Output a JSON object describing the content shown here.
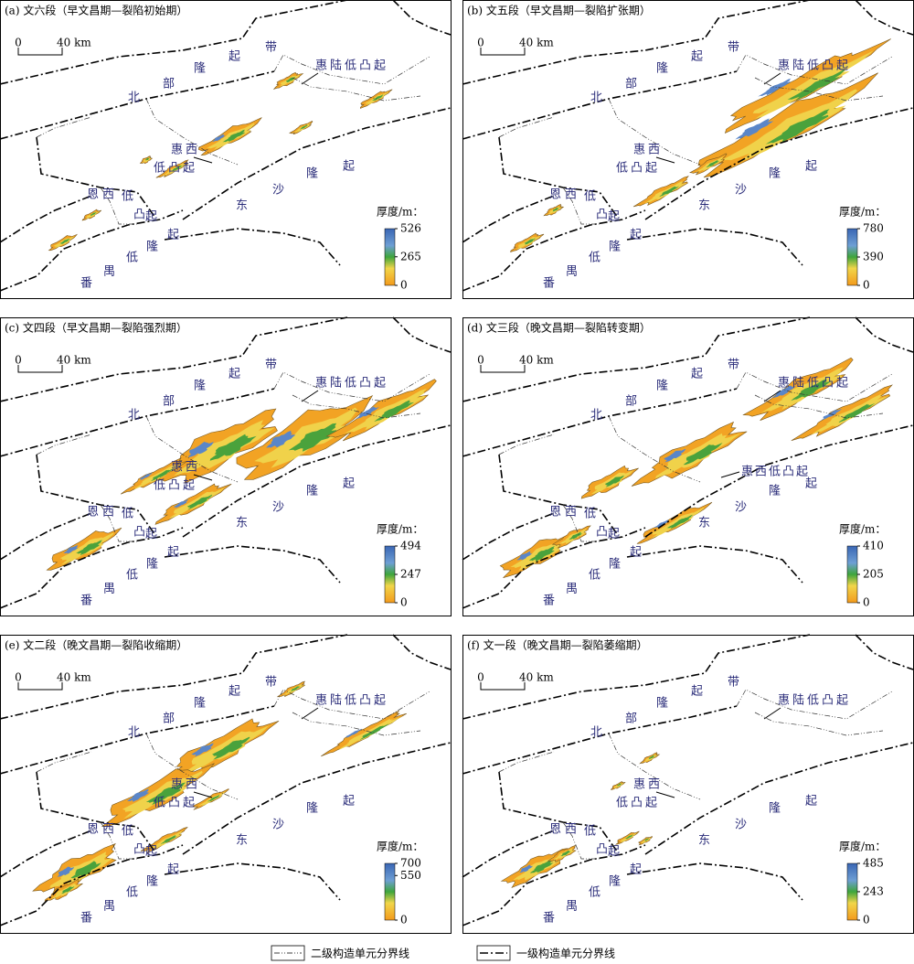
{
  "panels": [
    {
      "title": "(a) 文六段（早文昌期—裂陷初始期）",
      "scale": {
        "zero": "0",
        "length": "40 km"
      },
      "labels": {
        "north_uplift": "北部隆起带",
        "dongsha_uplift": "东沙隆起",
        "panyu_uplift": "番禺低隆起",
        "enxi_uplift": "恩西低凸起",
        "huixi_uplift": [
          "惠西",
          "低凸起"
        ],
        "huilu_uplift": "惠陆低凸起"
      },
      "legend": {
        "title": "厚度/m：",
        "ticks": [
          526,
          265,
          0
        ]
      }
    },
    {
      "title": "(b) 文五段（早文昌期—裂陷扩张期）",
      "scale": {
        "zero": "0",
        "length": "40 km"
      },
      "labels": {
        "north_uplift": "北部隆起带",
        "dongsha_uplift": "东沙隆起",
        "panyu_uplift": "番禺低隆起",
        "enxi_uplift": "恩西低凸起",
        "huixi_uplift": [
          "惠西",
          "低凸起"
        ],
        "huilu_uplift": "惠陆低凸起"
      },
      "legend": {
        "title": "厚度/m：",
        "ticks": [
          780,
          390,
          0
        ]
      }
    },
    {
      "title": "(c) 文四段（早文昌期—裂陷强烈期）",
      "scale": {
        "zero": "0",
        "length": "40 km"
      },
      "labels": {
        "north_uplift": "北部隆起带",
        "dongsha_uplift": "东沙隆起",
        "panyu_uplift": "番禺低隆起",
        "enxi_uplift": "恩西低凸起",
        "huixi_uplift": [
          "惠西",
          "低凸起"
        ],
        "huilu_uplift": "惠陆低凸起"
      },
      "legend": {
        "title": "厚度/m：",
        "ticks": [
          494,
          247,
          0
        ]
      }
    },
    {
      "title": "(d) 文三段（晚文昌期—裂陷转变期）",
      "scale": {
        "zero": "0",
        "length": "40 km"
      },
      "labels": {
        "north_uplift": "北部隆起带",
        "dongsha_uplift": "东沙隆起",
        "panyu_uplift": "番禺低隆起",
        "enxi_uplift": "恩西低凸起",
        "huixi_uplift": "惠西低凸起",
        "huilu_uplift": "惠陆低凸起"
      },
      "legend": {
        "title": "厚度/m：",
        "ticks": [
          410,
          205,
          0
        ]
      }
    },
    {
      "title": "(e) 文二段（晚文昌期—裂陷收缩期）",
      "scale": {
        "zero": "0",
        "length": "40 km"
      },
      "labels": {
        "north_uplift": "北部隆起带",
        "dongsha_uplift": "东沙隆起",
        "panyu_uplift": "番禺低隆起",
        "enxi_uplift": "恩西低凸起",
        "huixi_uplift": [
          "惠西",
          "低凸起"
        ],
        "huilu_uplift": "惠陆低凸起"
      },
      "legend": {
        "title": "厚度/m：",
        "ticks": [
          700,
          550,
          0
        ]
      }
    },
    {
      "title": "(f) 文一段（晚文昌期—裂陷萎缩期）",
      "scale": {
        "zero": "0",
        "length": "40 km"
      },
      "labels": {
        "north_uplift": "北部隆起带",
        "dongsha_uplift": "东沙隆起",
        "panyu_uplift": "番禺低隆起",
        "enxi_uplift": "恩西低凸起",
        "huixi_uplift": [
          "惠西",
          "低凸起"
        ],
        "huilu_uplift": "惠陆低凸起"
      },
      "legend": {
        "title": "厚度/m：",
        "ticks": [
          485,
          243,
          0
        ]
      }
    }
  ],
  "legend": {
    "items": [
      "二级构造单元分界线",
      "一级构造单元分界线"
    ]
  }
}
